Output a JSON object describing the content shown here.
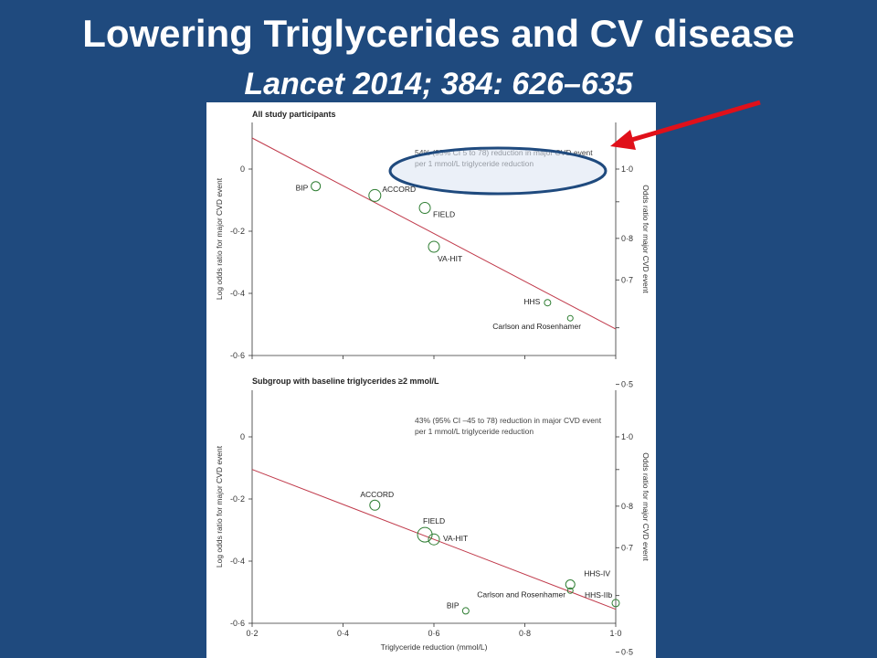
{
  "slide": {
    "title": "Lowering Triglycerides and CV disease",
    "subtitle": "Lancet 2014; 384: 626–635"
  },
  "colors": {
    "background": "#1f4a7e",
    "regression_line": "#c0394a",
    "marker": "#2e7d32",
    "arrow": "#e0101a",
    "ellipse_fill": "#dbe3f2",
    "ellipse_stroke": "#1f4a7e"
  },
  "chart_data": [
    {
      "type": "scatter",
      "title": "All study participants",
      "annotation": [
        "54% (95% CI 5 to 78) reduction in major CVD event",
        "per 1 mmol/L triglyceride reduction"
      ],
      "ylabel": "Log odds ratio for major CVD event",
      "ylabel_right": "Odds ratio for major CVD event",
      "xlim": [
        0.2,
        1.0
      ],
      "ylim": [
        -0.6,
        0.15
      ],
      "y_ticks": [
        0,
        -0.2,
        -0.4,
        -0.6
      ],
      "y_tick_labels": [
        "0",
        "-0·2",
        "-0·4",
        "-0·6"
      ],
      "y_right_ticks": [
        1.0,
        0.9,
        0.8,
        0.7,
        0.6,
        0.5
      ],
      "y_right_tick_labels": [
        "1·0",
        "",
        "0·8",
        "0·7",
        "",
        "0·5"
      ],
      "x_ticks": [
        0.2,
        0.4,
        0.6,
        0.8,
        1.0
      ],
      "x_tick_labels": [],
      "xlabel": "",
      "regression": {
        "x": [
          0.2,
          1.0
        ],
        "y": [
          0.1,
          -0.515
        ]
      },
      "points": [
        {
          "name": "BIP",
          "x": 0.34,
          "y": -0.055,
          "size": 5
        },
        {
          "name": "ACCORD",
          "x": 0.47,
          "y": -0.085,
          "size": 6.5
        },
        {
          "name": "FIELD",
          "x": 0.58,
          "y": -0.125,
          "size": 6
        },
        {
          "name": "VA-HIT",
          "x": 0.6,
          "y": -0.25,
          "size": 6
        },
        {
          "name": "HHS",
          "x": 0.85,
          "y": -0.43,
          "size": 3.5
        },
        {
          "name": "Carlson and Rosenhamer",
          "x": 0.9,
          "y": -0.48,
          "size": 3
        }
      ]
    },
    {
      "type": "scatter",
      "title": "Subgroup with baseline triglycerides ≥2 mmol/L",
      "annotation": [
        "43% (95% CI –45 to 78) reduction in major CVD event",
        "per 1 mmol/L triglyceride reduction"
      ],
      "ylabel": "Log odds ratio for major CVD event",
      "ylabel_right": "Odds ratio for major CVD event",
      "xlim": [
        0.2,
        1.0
      ],
      "ylim": [
        -0.6,
        0.15
      ],
      "y_ticks": [
        0,
        -0.2,
        -0.4,
        -0.6
      ],
      "y_tick_labels": [
        "0",
        "-0·2",
        "-0·4",
        "-0·6"
      ],
      "y_right_ticks": [
        1.0,
        0.9,
        0.8,
        0.7,
        0.6,
        0.5
      ],
      "y_right_tick_labels": [
        "1·0",
        "",
        "0·8",
        "0·7",
        "",
        "0·5"
      ],
      "x_ticks": [
        0.2,
        0.4,
        0.6,
        0.8,
        1.0
      ],
      "x_tick_labels": [
        "0·2",
        "0·4",
        "0·6",
        "0·8",
        "1·0"
      ],
      "xlabel": "Triglyceride reduction (mmol/L)",
      "regression": {
        "x": [
          0.2,
          1.0
        ],
        "y": [
          -0.105,
          -0.555
        ]
      },
      "points": [
        {
          "name": "ACCORD",
          "x": 0.47,
          "y": -0.22,
          "size": 5.5
        },
        {
          "name": "FIELD",
          "x": 0.58,
          "y": -0.315,
          "size": 8
        },
        {
          "name": "VA-HIT",
          "x": 0.6,
          "y": -0.33,
          "size": 6
        },
        {
          "name": "HHS-IV",
          "x": 0.9,
          "y": -0.475,
          "size": 5
        },
        {
          "name": "Carlson and Rosenhamer",
          "x": 0.9,
          "y": -0.495,
          "size": 3
        },
        {
          "name": "HHS-IIb",
          "x": 1.0,
          "y": -0.535,
          "size": 4
        },
        {
          "name": "BIP",
          "x": 0.67,
          "y": -0.56,
          "size": 3.5
        }
      ]
    }
  ]
}
